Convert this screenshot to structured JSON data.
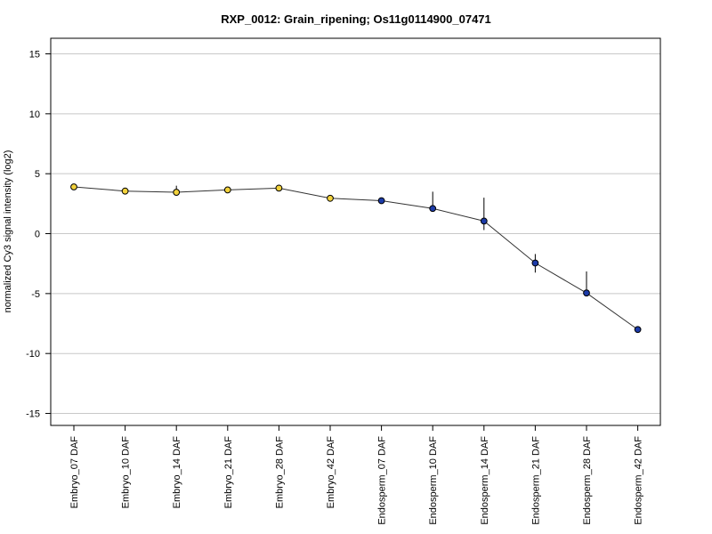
{
  "chart_data": {
    "type": "line",
    "title": "RXP_0012: Grain_ripening; Os11g0114900_07471",
    "xlabel": "",
    "ylabel": "normalized Cy3 signal intensity (log2)",
    "ylim": [
      -16,
      16.3
    ],
    "yticks": [
      -15,
      -10,
      -5,
      0,
      5,
      10,
      15
    ],
    "grid": "horizontal",
    "categories": [
      "Embryo_07 DAF",
      "Embryo_10 DAF",
      "Embryo_14 DAF",
      "Embryo_21 DAF",
      "Embryo_28 DAF",
      "Embryo_42 DAF",
      "Endosperm_07 DAF",
      "Endosperm_10 DAF",
      "Endosperm_14 DAF",
      "Endosperm_21 DAF",
      "Endosperm_28 DAF",
      "Endosperm_42 DAF"
    ],
    "values": [
      3.9,
      3.55,
      3.45,
      3.65,
      3.8,
      2.95,
      2.75,
      2.1,
      1.05,
      -2.45,
      -4.95,
      -8.0
    ],
    "error_low": [
      3.85,
      3.5,
      3.2,
      3.6,
      3.75,
      2.9,
      2.7,
      1.9,
      0.3,
      -3.25,
      -5.0,
      -8.05
    ],
    "error_high": [
      3.95,
      3.6,
      4.0,
      3.7,
      3.85,
      3.0,
      2.8,
      3.5,
      3.0,
      -1.7,
      -3.15,
      -7.95
    ],
    "point_colors": [
      "#F2D23C",
      "#F2D23C",
      "#F2D23C",
      "#F2D23C",
      "#F2D23C",
      "#F2D23C",
      "#1C3BA8",
      "#1C3BA8",
      "#1C3BA8",
      "#1C3BA8",
      "#1C3BA8",
      "#1C3BA8"
    ],
    "colors": {
      "embryo_point": "#F2D23C",
      "endosperm_point": "#1C3BA8",
      "line": "#333333",
      "grid": "#c8c8c8"
    }
  }
}
